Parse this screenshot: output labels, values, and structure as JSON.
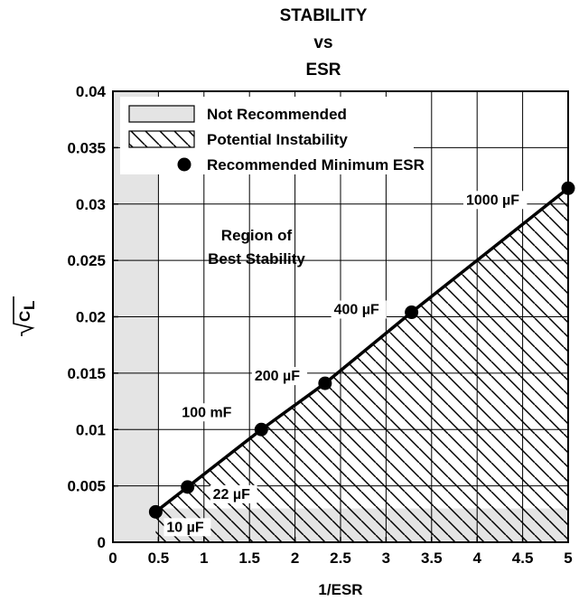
{
  "chart_data": {
    "type": "line",
    "title_lines": [
      "STABILITY",
      "vs",
      "ESR"
    ],
    "xlabel": "1/ESR",
    "ylabel": "C",
    "ylabel_subscript": "L",
    "xlim": [
      0,
      5
    ],
    "ylim": [
      0,
      0.04
    ],
    "x_ticks": [
      0,
      0.5,
      1,
      1.5,
      2,
      2.5,
      3,
      3.5,
      4,
      4.5,
      5
    ],
    "x_tick_labels": [
      "0",
      "0.5",
      "1",
      "1.5",
      "2",
      "2.5",
      "3",
      "3.5",
      "4",
      "4.5",
      "5"
    ],
    "y_ticks": [
      0,
      0.005,
      0.01,
      0.015,
      0.02,
      0.025,
      0.03,
      0.035,
      0.04
    ],
    "y_tick_labels": [
      "0",
      "0.005",
      "0.01",
      "0.015",
      "0.02",
      "0.025",
      "0.03",
      "0.035",
      "0.04"
    ],
    "grid": true,
    "legend_position": "top-left",
    "legend": [
      {
        "label": "Not Recommended",
        "symbol": "gray-box"
      },
      {
        "label": "Potential Instability",
        "symbol": "hatch-box"
      },
      {
        "label": "Recommended Minimum ESR",
        "symbol": "dot"
      }
    ],
    "series": [
      {
        "x": [
          0.47,
          0.82,
          1.63,
          2.33,
          3.28,
          5.0
        ],
        "y": [
          0.0027,
          0.0049,
          0.01,
          0.0141,
          0.0204,
          0.0314
        ]
      }
    ],
    "point_labels": [
      "10 µF",
      "22 µF",
      "100 mF",
      "200 µF",
      "400 µF",
      "1000 µF"
    ],
    "regions": {
      "not_recommended": [
        {
          "x": [
            0,
            0.5
          ],
          "y": [
            0,
            0.04
          ]
        },
        {
          "x": [
            0,
            5
          ],
          "y": [
            0,
            0.003
          ]
        }
      ],
      "potential_instability": "below-line"
    },
    "annotation_lines": [
      "Region of",
      "Best Stability"
    ],
    "colors": {
      "not_recommended": "#e4e4e4",
      "line": "#000000",
      "grid": "#000000"
    }
  }
}
